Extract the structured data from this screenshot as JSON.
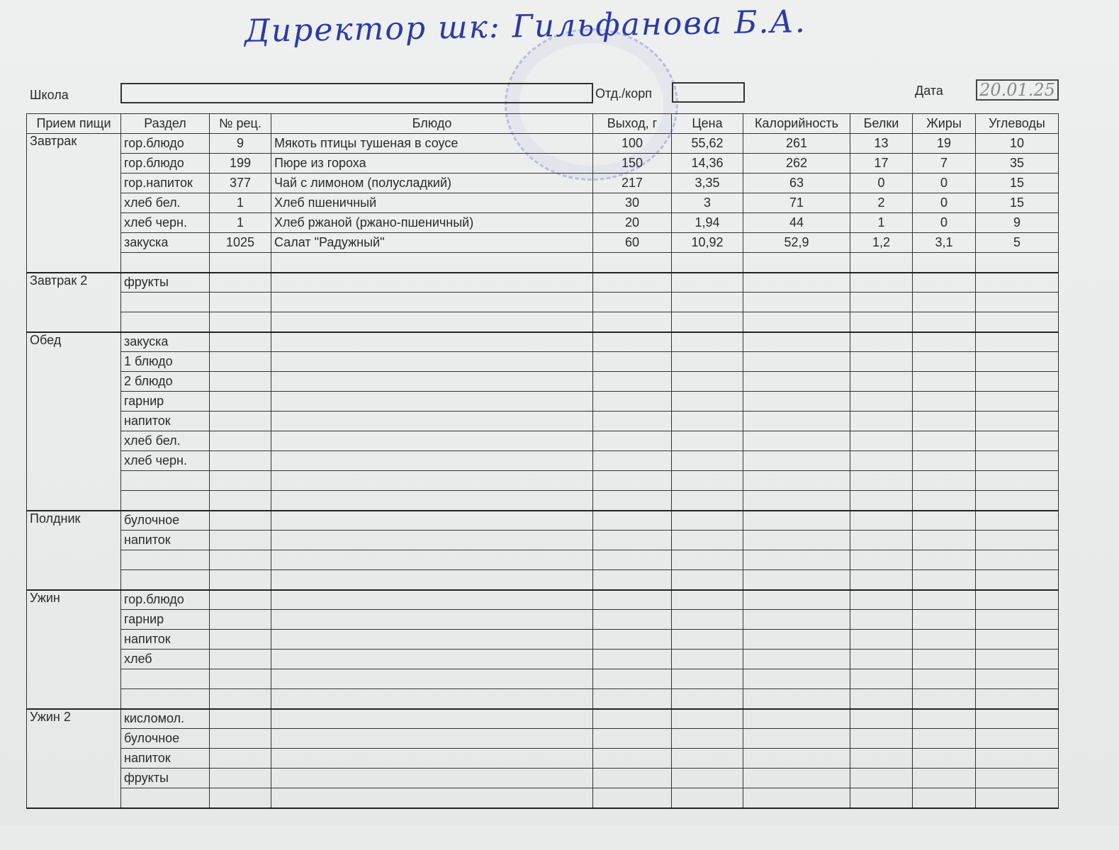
{
  "signature": "Директор шк: Гильфанова Б.А.",
  "header": {
    "school_label": "Школа",
    "school_value": "",
    "dept_label": "Отд./корп",
    "dept_value": "",
    "date_label": "Дата",
    "date_value": "20.01.25"
  },
  "columns": [
    "Прием пищи",
    "Раздел",
    "№ рец.",
    "Блюдо",
    "Выход, г",
    "Цена",
    "Калорийность",
    "Белки",
    "Жиры",
    "Углеводы"
  ],
  "meals": [
    {
      "name": "Завтрак",
      "rows": [
        [
          "гор.блюдо",
          "9",
          "Мякоть птицы тушеная в соусе",
          "100",
          "55,62",
          "261",
          "13",
          "19",
          "10"
        ],
        [
          "гор.блюдо",
          "199",
          "Пюре из гороха",
          "150",
          "14,36",
          "262",
          "17",
          "7",
          "35"
        ],
        [
          "гор.напиток",
          "377",
          "Чай с лимоном (полусладкий)",
          "217",
          "3,35",
          "63",
          "0",
          "0",
          "15"
        ],
        [
          "хлеб бел.",
          "1",
          "Хлеб пшеничный",
          "30",
          "3",
          "71",
          "2",
          "0",
          "15"
        ],
        [
          "хлеб черн.",
          "1",
          "Хлеб ржаной (ржано-пшеничный)",
          "20",
          "1,94",
          "44",
          "1",
          "0",
          "9"
        ],
        [
          "закуска",
          "1025",
          "Салат \"Радужный\"",
          "60",
          "10,92",
          "52,9",
          "1,2",
          "3,1",
          "5"
        ],
        [
          "",
          "",
          "",
          "",
          "",
          "",
          "",
          "",
          ""
        ]
      ]
    },
    {
      "name": "Завтрак 2",
      "rows": [
        [
          "фрукты"
        ],
        [
          ""
        ],
        [
          ""
        ]
      ]
    },
    {
      "name": "Обед",
      "rows": [
        [
          "закуска"
        ],
        [
          "1 блюдо"
        ],
        [
          "2 блюдо"
        ],
        [
          "гарнир"
        ],
        [
          "напиток"
        ],
        [
          "хлеб бел."
        ],
        [
          "хлеб черн."
        ],
        [
          ""
        ],
        [
          ""
        ]
      ]
    },
    {
      "name": "Полдник",
      "rows": [
        [
          "булочное"
        ],
        [
          "напиток"
        ],
        [
          ""
        ],
        [
          ""
        ]
      ]
    },
    {
      "name": "Ужин",
      "rows": [
        [
          "гор.блюдо"
        ],
        [
          "гарнир"
        ],
        [
          "напиток"
        ],
        [
          "хлеб"
        ],
        [
          ""
        ],
        [
          ""
        ]
      ]
    },
    {
      "name": "Ужин 2",
      "rows": [
        [
          "кисломол."
        ],
        [
          "булочное"
        ],
        [
          "напиток"
        ],
        [
          "фрукты"
        ],
        [
          ""
        ]
      ]
    }
  ]
}
